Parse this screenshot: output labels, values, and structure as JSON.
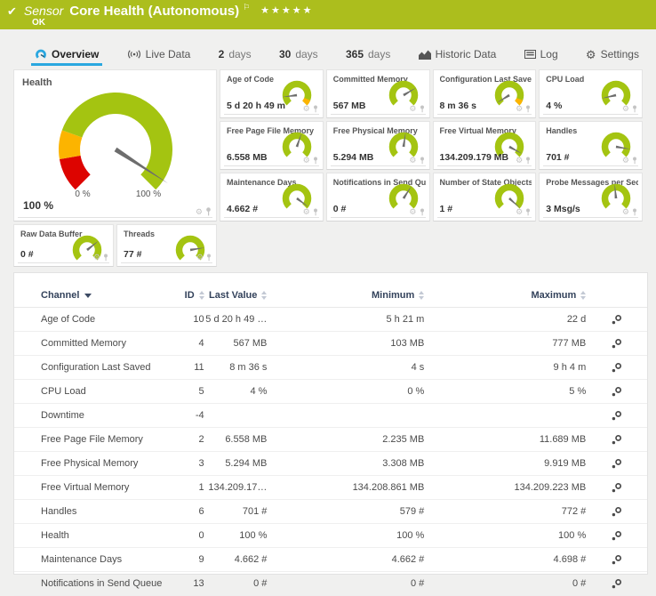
{
  "icons": {
    "check": "✔",
    "flag": "⚐",
    "stars": "★★★★★",
    "gear": "⚙"
  },
  "colors": {
    "header_green": "#acbe1d",
    "gauge_green": "#a4c411",
    "warn_orange": "#fcb400",
    "alert_red": "#dd0400",
    "needle_grey": "#6d6d6d",
    "tab_active_blue": "#2aa7e0"
  },
  "header": {
    "kind": "Sensor",
    "title": "Core Health (Autonomous)",
    "status": "OK"
  },
  "tabs": {
    "items": [
      {
        "label": "Overview",
        "active": true
      },
      {
        "label": "Live Data"
      },
      {
        "num": "2",
        "word": "days"
      },
      {
        "num": "30",
        "word": "days"
      },
      {
        "num": "365",
        "word": "days"
      },
      {
        "label": "Historic Data"
      },
      {
        "label": "Log"
      },
      {
        "label": "Settings"
      }
    ]
  },
  "gauges": {
    "health": {
      "title": "Health",
      "value": "100 %",
      "min_label": "0 %",
      "max_label": "100 %",
      "needle_f": 0.955,
      "segments": [
        {
          "from": 0,
          "to": 0.13,
          "color": "#dd0400"
        },
        {
          "from": 0.13,
          "to": 0.24,
          "color": "#fcb400"
        },
        {
          "from": 0.24,
          "to": 1,
          "color": "#a4c411"
        }
      ]
    },
    "small": [
      {
        "title": "Age of Code",
        "value": "5 d 20 h 49 m",
        "needle_f": 0.14,
        "warn_tip": true
      },
      {
        "title": "Committed Memory",
        "value": "567 MB",
        "needle_f": 0.72
      },
      {
        "title": "Configuration Last Saved",
        "value": "8 m 36 s",
        "needle_f": 0.05,
        "warn_tip": true
      },
      {
        "title": "CPU Load",
        "value": "4 %",
        "needle_f": 0.12
      },
      {
        "title": "Free Page File Memory",
        "value": "6.558 MB",
        "needle_f": 0.57
      },
      {
        "title": "Free Physical Memory",
        "value": "5.294 MB",
        "needle_f": 0.53
      },
      {
        "title": "Free Virtual Memory",
        "value": "134.209.179 MB",
        "needle_f": 0.94
      },
      {
        "title": "Handles",
        "value": "701 #",
        "needle_f": 0.87
      },
      {
        "title": "Maintenance Days",
        "value": "4.662 #",
        "needle_f": 0.97
      },
      {
        "title": "Notifications in Send Queue",
        "value": "0 #",
        "needle_f": 0.62
      },
      {
        "title": "Number of State Objects",
        "value": "1 #",
        "needle_f": 0.99
      },
      {
        "title": "Probe Messages per Second",
        "value": "3 Msg/s",
        "needle_f": 0.48
      },
      {
        "title": "Raw Data Buffer",
        "value": "0 #",
        "needle_f": 0.69
      },
      {
        "title": "Threads",
        "value": "77 #",
        "needle_f": 0.8
      }
    ]
  },
  "table": {
    "columns": [
      {
        "label": "Channel",
        "sort": "desc"
      },
      {
        "label": "ID",
        "sort": "both"
      },
      {
        "label": "Last Value",
        "sort": "both"
      },
      {
        "label": "Minimum",
        "sort": "both"
      },
      {
        "label": "Maximum",
        "sort": "both"
      }
    ],
    "rows": [
      {
        "channel": "Age of Code",
        "id": "10",
        "last": "5 d 20 h 49 …",
        "min": "5 h 21 m",
        "max": "22 d"
      },
      {
        "channel": "Committed Memory",
        "id": "4",
        "last": "567 MB",
        "min": "103 MB",
        "max": "777 MB"
      },
      {
        "channel": "Configuration Last Saved",
        "id": "11",
        "last": "8 m 36 s",
        "min": "4 s",
        "max": "9 h 4 m"
      },
      {
        "channel": "CPU Load",
        "id": "5",
        "last": "4 %",
        "min": "0 %",
        "max": "5 %"
      },
      {
        "channel": "Downtime",
        "id": "-4",
        "last": "",
        "min": "",
        "max": ""
      },
      {
        "channel": "Free Page File Memory",
        "id": "2",
        "last": "6.558 MB",
        "min": "2.235 MB",
        "max": "11.689 MB"
      },
      {
        "channel": "Free Physical Memory",
        "id": "3",
        "last": "5.294 MB",
        "min": "3.308 MB",
        "max": "9.919 MB"
      },
      {
        "channel": "Free Virtual Memory",
        "id": "1",
        "last": "134.209.17…",
        "min": "134.208.861 MB",
        "max": "134.209.223 MB"
      },
      {
        "channel": "Handles",
        "id": "6",
        "last": "701 #",
        "min": "579 #",
        "max": "772 #"
      },
      {
        "channel": "Health",
        "id": "0",
        "last": "100 %",
        "min": "100 %",
        "max": "100 %"
      },
      {
        "channel": "Maintenance Days",
        "id": "9",
        "last": "4.662 #",
        "min": "4.662 #",
        "max": "4.698 #"
      },
      {
        "channel": "Notifications in Send Queue",
        "id": "13",
        "last": "0 #",
        "min": "0 #",
        "max": "0 #"
      }
    ]
  }
}
